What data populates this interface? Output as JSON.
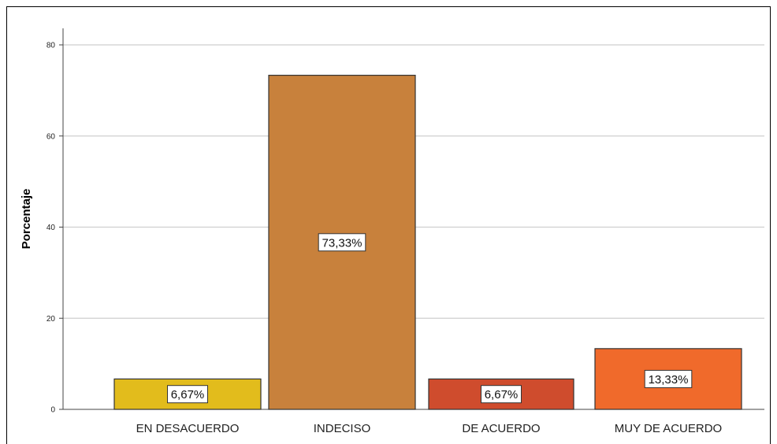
{
  "chart_data": {
    "type": "bar",
    "ylabel": "Porcentaje",
    "xlabel": "",
    "ylim": [
      0,
      80
    ],
    "yticks": [
      0,
      20,
      40,
      60,
      80
    ],
    "grid": true,
    "categories": [
      "EN DESACUERDO",
      "INDECISO",
      "DE ACUERDO",
      "MUY DE ACUERDO"
    ],
    "values": [
      6.67,
      73.33,
      6.67,
      13.33
    ],
    "data_labels": [
      "6,67%",
      "73,33%",
      "6,67%",
      "13,33%"
    ],
    "colors": [
      "#e2bc1c",
      "#c8813c",
      "#cf4c2d",
      "#f06a2b"
    ]
  }
}
